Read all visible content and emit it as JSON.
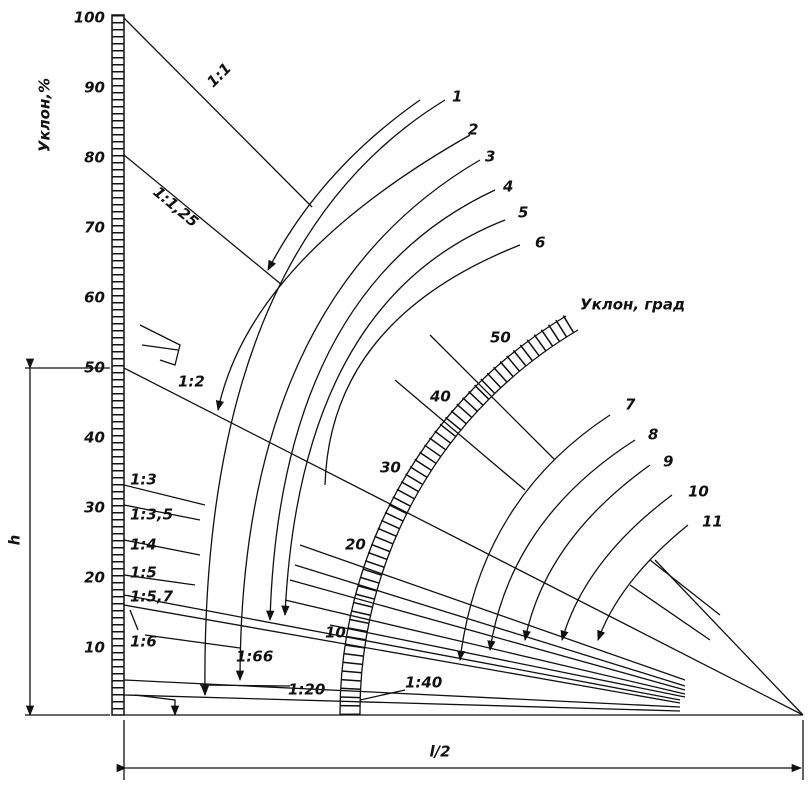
{
  "left_scale": {
    "title": "Уклон,%",
    "ticks": [
      "100",
      "90",
      "80",
      "70",
      "60",
      "50",
      "40",
      "30",
      "20",
      "10"
    ]
  },
  "degree_scale": {
    "title": "Уклон, град",
    "ticks": [
      "50",
      "40",
      "30",
      "20",
      "10"
    ]
  },
  "ratios": [
    "1:1",
    "1:1,25",
    "1:2",
    "1:3",
    "1:3,5",
    "1:4",
    "1:5",
    "1:5,7",
    "1:6",
    "1:66",
    "1:20",
    "1:40"
  ],
  "curves": [
    "1",
    "2",
    "3",
    "4",
    "5",
    "6",
    "7",
    "8",
    "9",
    "10",
    "11"
  ],
  "dimensions": {
    "height": "h",
    "half_span": "l/2"
  }
}
